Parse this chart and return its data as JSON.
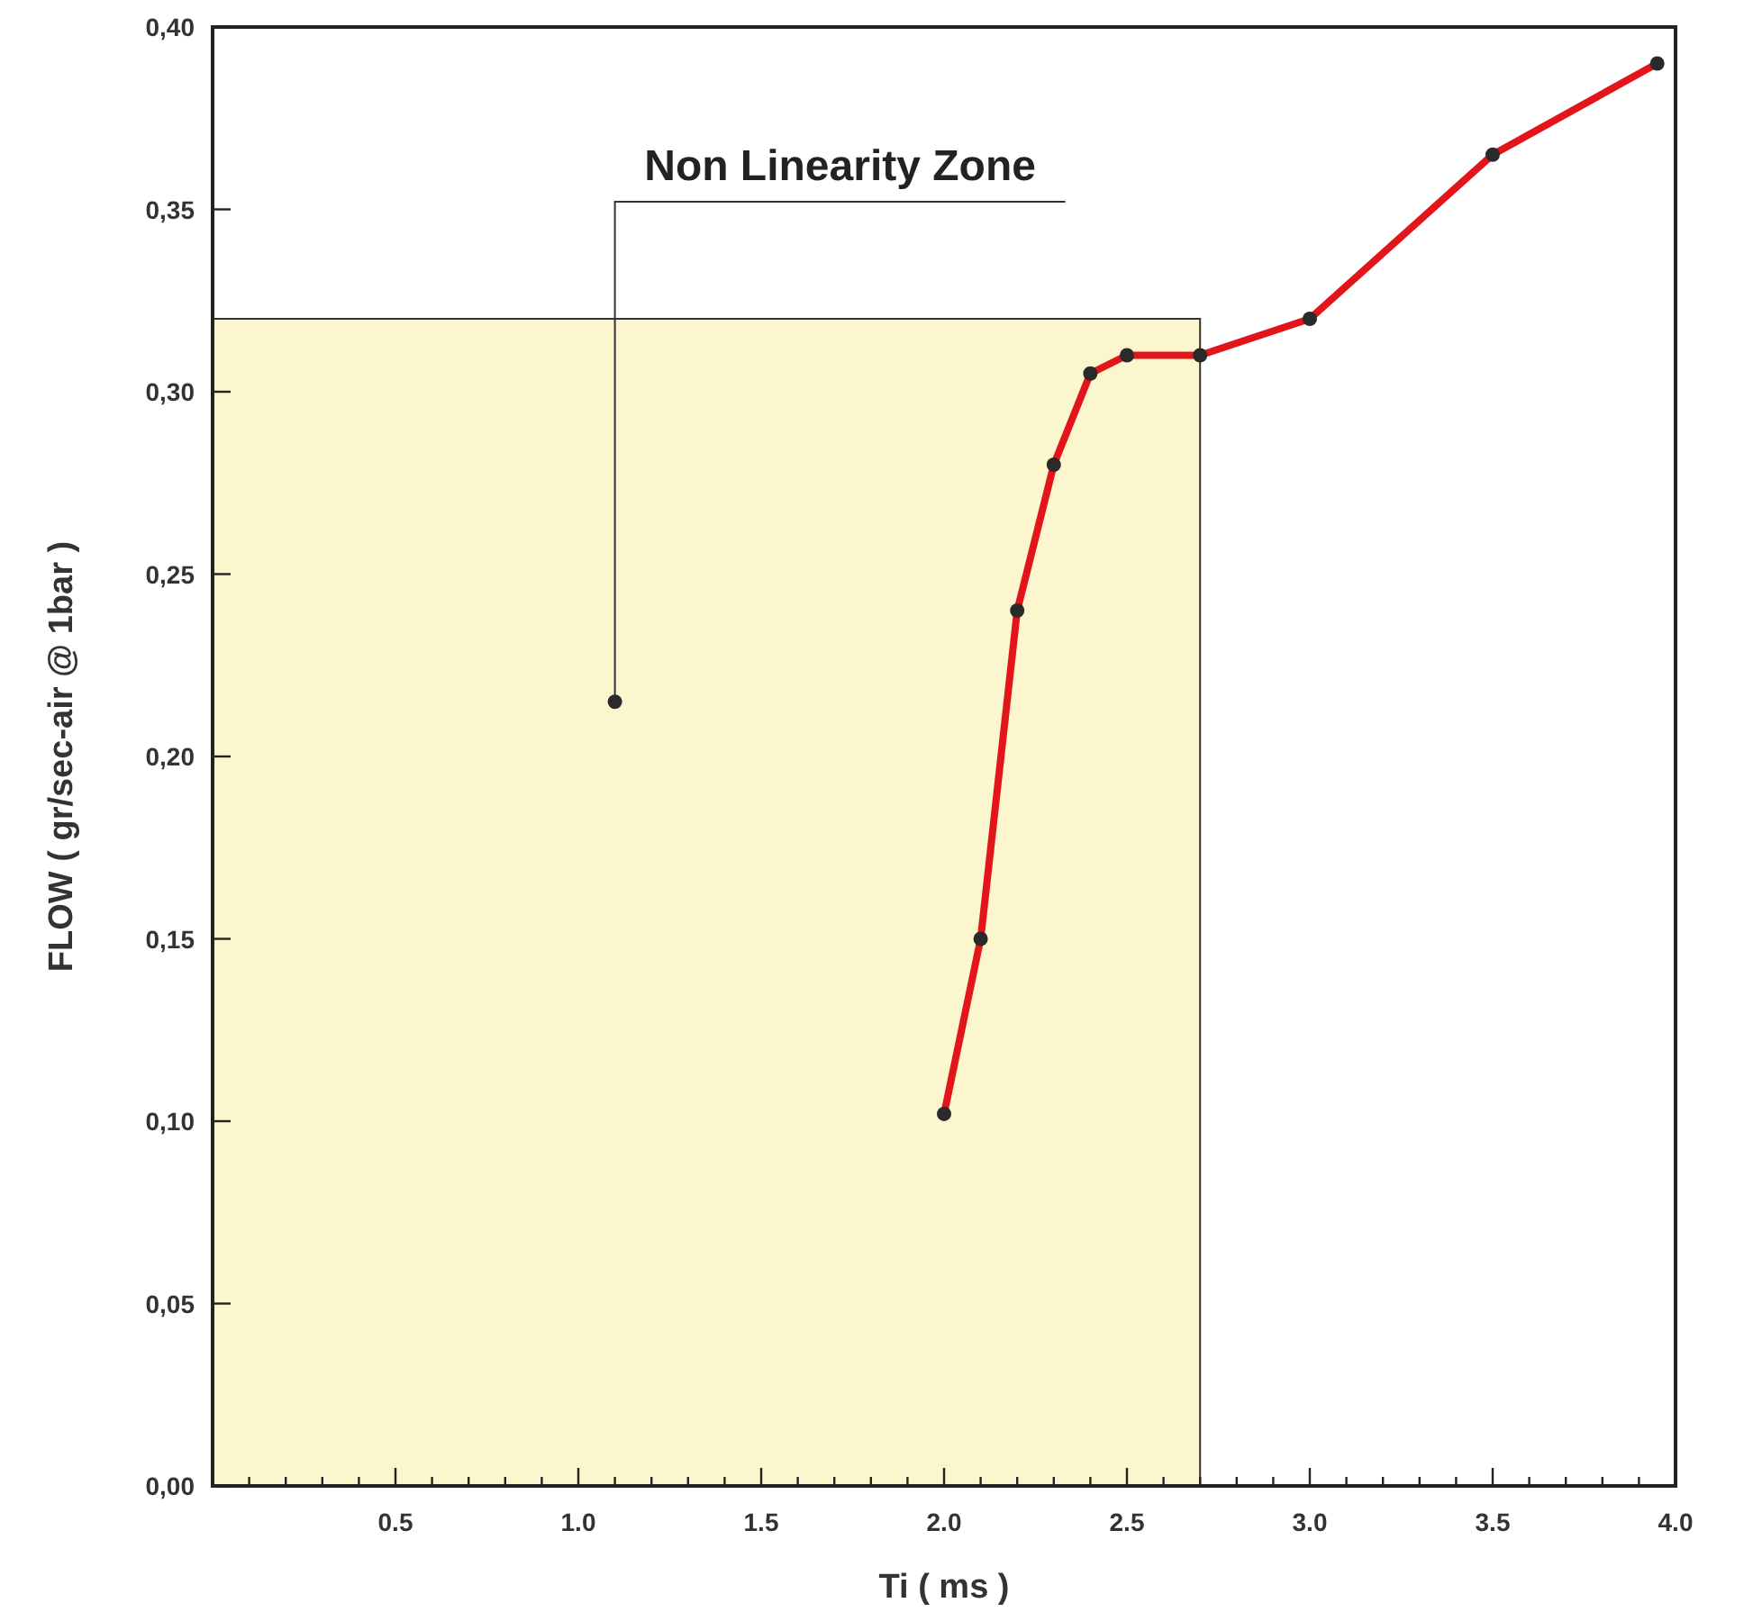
{
  "chart_data": {
    "type": "line",
    "xlabel": "Ti ( ms )",
    "ylabel": "FLOW ( gr/sec-air @ 1bar )",
    "x": [
      2.0,
      2.1,
      2.2,
      2.3,
      2.4,
      2.5,
      2.7,
      3.0,
      3.5,
      3.95
    ],
    "series": [
      {
        "color": "#e3151a",
        "values": [
          0.102,
          0.15,
          0.24,
          0.28,
          0.305,
          0.31,
          0.31,
          0.32,
          0.365,
          0.39
        ]
      }
    ],
    "marker": "circle",
    "line_style": "solid",
    "grid": false,
    "xlim": [
      0,
      4.0
    ],
    "ylim": [
      0,
      0.4
    ],
    "xticks": [
      {
        "value": 0.1,
        "label": null
      },
      {
        "value": 0.2,
        "label": null
      },
      {
        "value": 0.3,
        "label": null
      },
      {
        "value": 0.4,
        "label": null
      },
      {
        "value": 0.5,
        "label": "0.5"
      },
      {
        "value": 0.6,
        "label": null
      },
      {
        "value": 0.7,
        "label": null
      },
      {
        "value": 0.8,
        "label": null
      },
      {
        "value": 0.9,
        "label": null
      },
      {
        "value": 1.0,
        "label": "1.0"
      },
      {
        "value": 1.1,
        "label": null
      },
      {
        "value": 1.2,
        "label": null
      },
      {
        "value": 1.3,
        "label": null
      },
      {
        "value": 1.4,
        "label": null
      },
      {
        "value": 1.5,
        "label": "1.5"
      },
      {
        "value": 1.6,
        "label": null
      },
      {
        "value": 1.7,
        "label": null
      },
      {
        "value": 1.8,
        "label": null
      },
      {
        "value": 1.9,
        "label": null
      },
      {
        "value": 2.0,
        "label": "2.0"
      },
      {
        "value": 2.1,
        "label": null
      },
      {
        "value": 2.2,
        "label": null
      },
      {
        "value": 2.3,
        "label": null
      },
      {
        "value": 2.4,
        "label": null
      },
      {
        "value": 2.5,
        "label": "2.5"
      },
      {
        "value": 2.6,
        "label": null
      },
      {
        "value": 2.7,
        "label": null
      },
      {
        "value": 2.8,
        "label": null
      },
      {
        "value": 2.9,
        "label": null
      },
      {
        "value": 3.0,
        "label": "3.0"
      },
      {
        "value": 3.1,
        "label": null
      },
      {
        "value": 3.2,
        "label": null
      },
      {
        "value": 3.3,
        "label": null
      },
      {
        "value": 3.4,
        "label": null
      },
      {
        "value": 3.5,
        "label": "3.5"
      },
      {
        "value": 3.6,
        "label": null
      },
      {
        "value": 3.7,
        "label": null
      },
      {
        "value": 3.8,
        "label": null
      },
      {
        "value": 3.9,
        "label": null
      },
      {
        "value": 4.0,
        "label": "4.0"
      }
    ],
    "yticks": [
      {
        "value": 0,
        "label": "0,00"
      },
      {
        "value": 0.05,
        "label": "0,05"
      },
      {
        "value": 0.1,
        "label": "0,10"
      },
      {
        "value": 0.15,
        "label": "0,15"
      },
      {
        "value": 0.2,
        "label": "0,20"
      },
      {
        "value": 0.25,
        "label": "0,25"
      },
      {
        "value": 0.3,
        "label": "0,30"
      },
      {
        "value": 0.35,
        "label": "0,35"
      },
      {
        "value": 0.4,
        "label": "0,40"
      }
    ],
    "bands": [
      {
        "axis": "x",
        "from": 0,
        "to": 2.7,
        "color": "#fcf6cf"
      }
    ],
    "annotations": [
      {
        "text": "Non Linearity Zone",
        "x": 1.1,
        "y": 0.215
      }
    ]
  }
}
